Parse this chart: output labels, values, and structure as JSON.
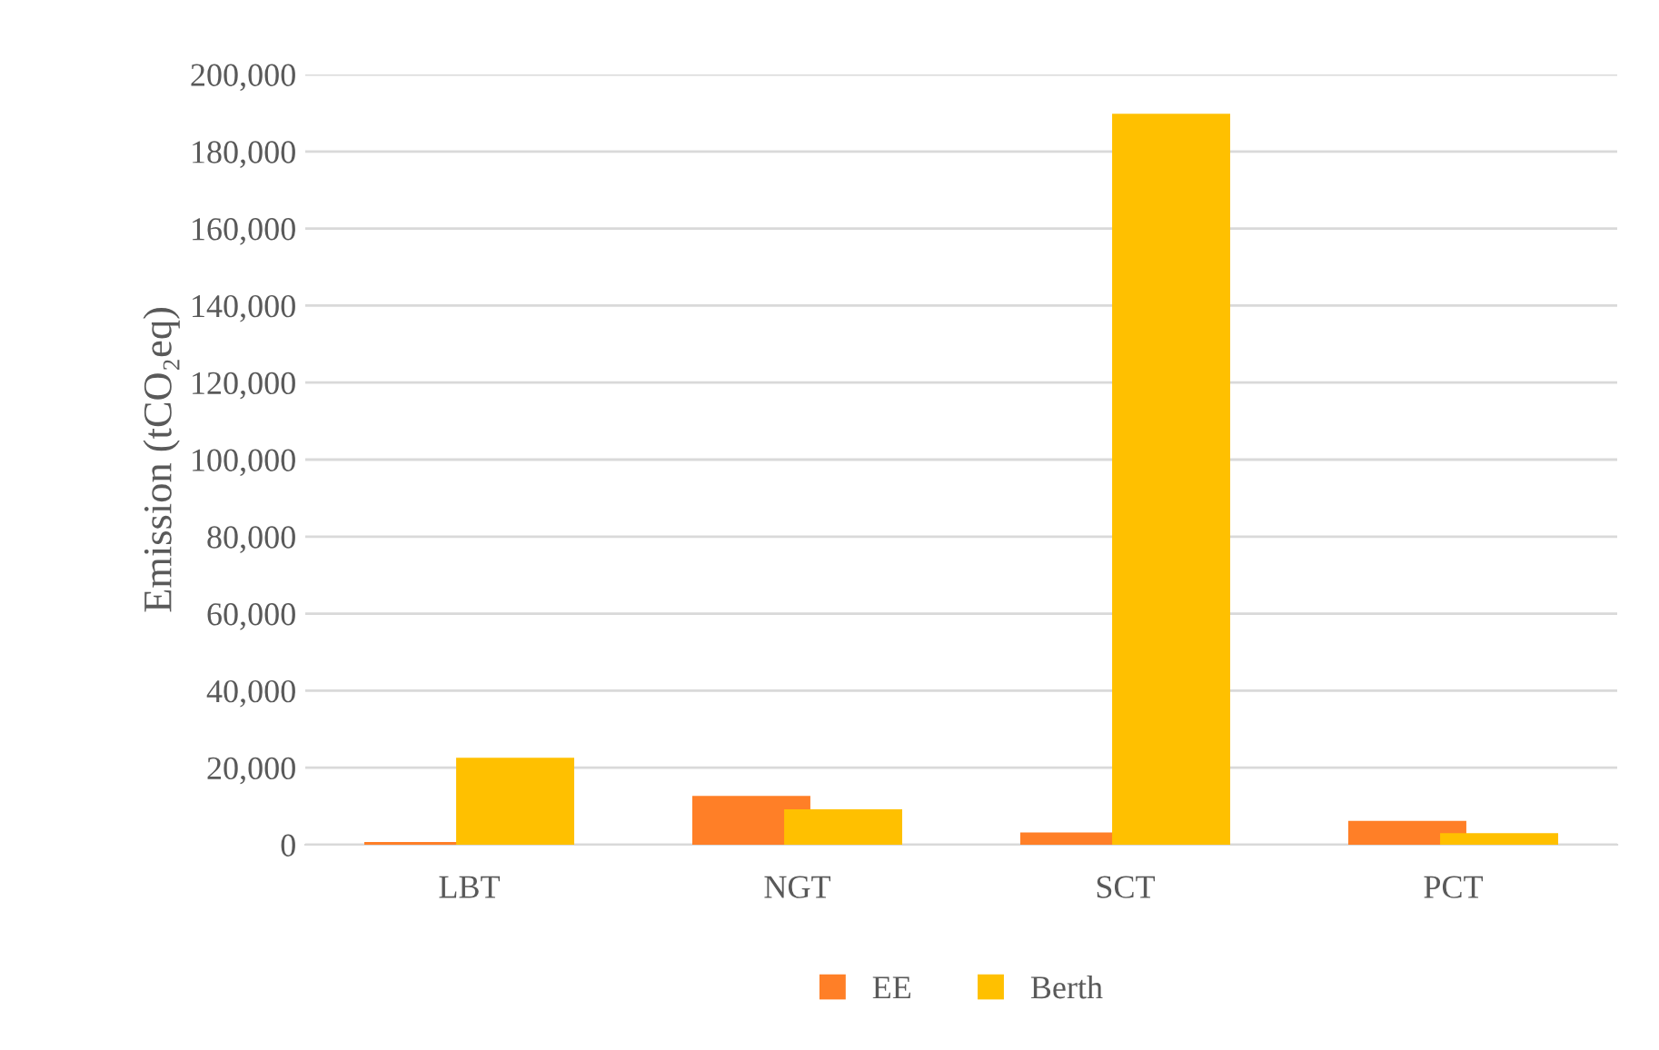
{
  "chart_data": {
    "type": "bar",
    "ylabel": "Emission (tCO₂eq)",
    "categories": [
      "LBT",
      "NGT",
      "SCT",
      "PCT"
    ],
    "series": [
      {
        "name": "EE",
        "color": "#ff7f27",
        "values": [
          700,
          12700,
          3200,
          6200
        ]
      },
      {
        "name": "Berth",
        "color": "#ffc000",
        "values": [
          22600,
          9200,
          189800,
          3000
        ]
      }
    ],
    "ylim": [
      0,
      200000
    ],
    "yticks": [
      {
        "value": 0,
        "label": "0"
      },
      {
        "value": 20000,
        "label": "20,000"
      },
      {
        "value": 40000,
        "label": "40,000"
      },
      {
        "value": 60000,
        "label": "60,000"
      },
      {
        "value": 80000,
        "label": "80,000"
      },
      {
        "value": 100000,
        "label": "100,000"
      },
      {
        "value": 120000,
        "label": "120,000"
      },
      {
        "value": 140000,
        "label": "140,000"
      },
      {
        "value": 160000,
        "label": "160,000"
      },
      {
        "value": 180000,
        "label": "180,000"
      },
      {
        "value": 200000,
        "label": "200,000"
      }
    ],
    "grid": "y",
    "legend": "bottom"
  }
}
